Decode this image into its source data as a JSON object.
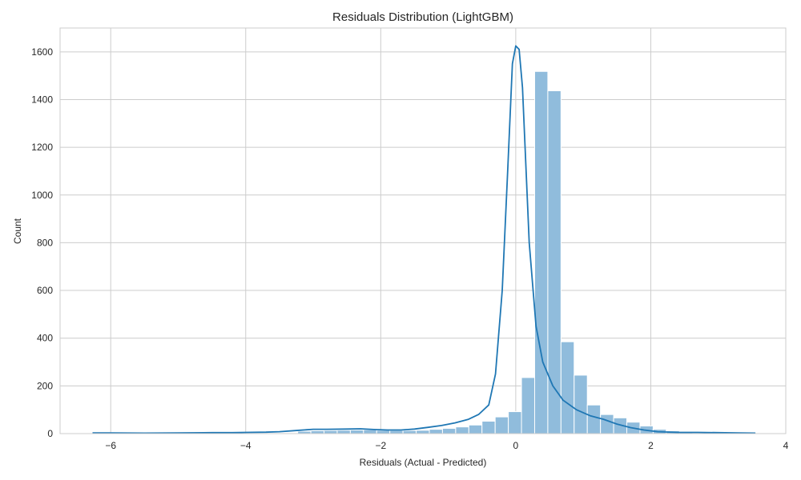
{
  "chart_data": {
    "type": "bar",
    "title": "Residuals Distribution (LightGBM)",
    "xlabel": "Residuals (Actual - Predicted)",
    "ylabel": "Count",
    "xlim": [
      -6.75,
      4.0
    ],
    "ylim": [
      0,
      1700
    ],
    "xticks": [
      -6,
      -4,
      -2,
      0,
      2,
      4
    ],
    "xtick_labels": [
      "−6",
      "−4",
      "−2",
      "0",
      "2",
      "4"
    ],
    "yticks": [
      0,
      200,
      400,
      600,
      800,
      1000,
      1200,
      1400,
      1600
    ],
    "grid": true,
    "legend": "none",
    "colors": {
      "bar": "#90bcdc",
      "bar_edge": "#ffffff",
      "kde": "#1f77b4",
      "grid": "#cccccc"
    },
    "series": [
      {
        "kind": "histogram",
        "bin_start": -3.23,
        "bin_width": 0.195,
        "counts": [
          10,
          12,
          13,
          14,
          15,
          16,
          14,
          13,
          13,
          14,
          18,
          22,
          28,
          36,
          52,
          70,
          92,
          235,
          1518,
          1437,
          385,
          245,
          120,
          80,
          66,
          48,
          32,
          18,
          12,
          6
        ]
      },
      {
        "kind": "kde",
        "x": [
          -6.27,
          -6.0,
          -5.5,
          -5.0,
          -4.5,
          -4.2,
          -4.0,
          -3.7,
          -3.5,
          -3.2,
          -3.0,
          -2.8,
          -2.5,
          -2.3,
          -2.1,
          -1.9,
          -1.7,
          -1.5,
          -1.3,
          -1.1,
          -0.9,
          -0.7,
          -0.55,
          -0.4,
          -0.3,
          -0.2,
          -0.12,
          -0.05,
          0.0,
          0.05,
          0.1,
          0.2,
          0.3,
          0.4,
          0.55,
          0.7,
          0.9,
          1.1,
          1.3,
          1.5,
          1.7,
          1.9,
          2.1,
          2.4,
          2.7,
          3.0,
          3.3,
          3.55
        ],
        "y": [
          3,
          3,
          2,
          3,
          4,
          4,
          5,
          6,
          8,
          14,
          18,
          18,
          19,
          20,
          17,
          15,
          15,
          19,
          26,
          34,
          45,
          60,
          80,
          120,
          250,
          600,
          1100,
          1550,
          1625,
          1610,
          1450,
          800,
          450,
          300,
          200,
          140,
          100,
          75,
          60,
          40,
          25,
          15,
          8,
          5,
          5,
          4,
          3,
          2
        ]
      }
    ]
  }
}
